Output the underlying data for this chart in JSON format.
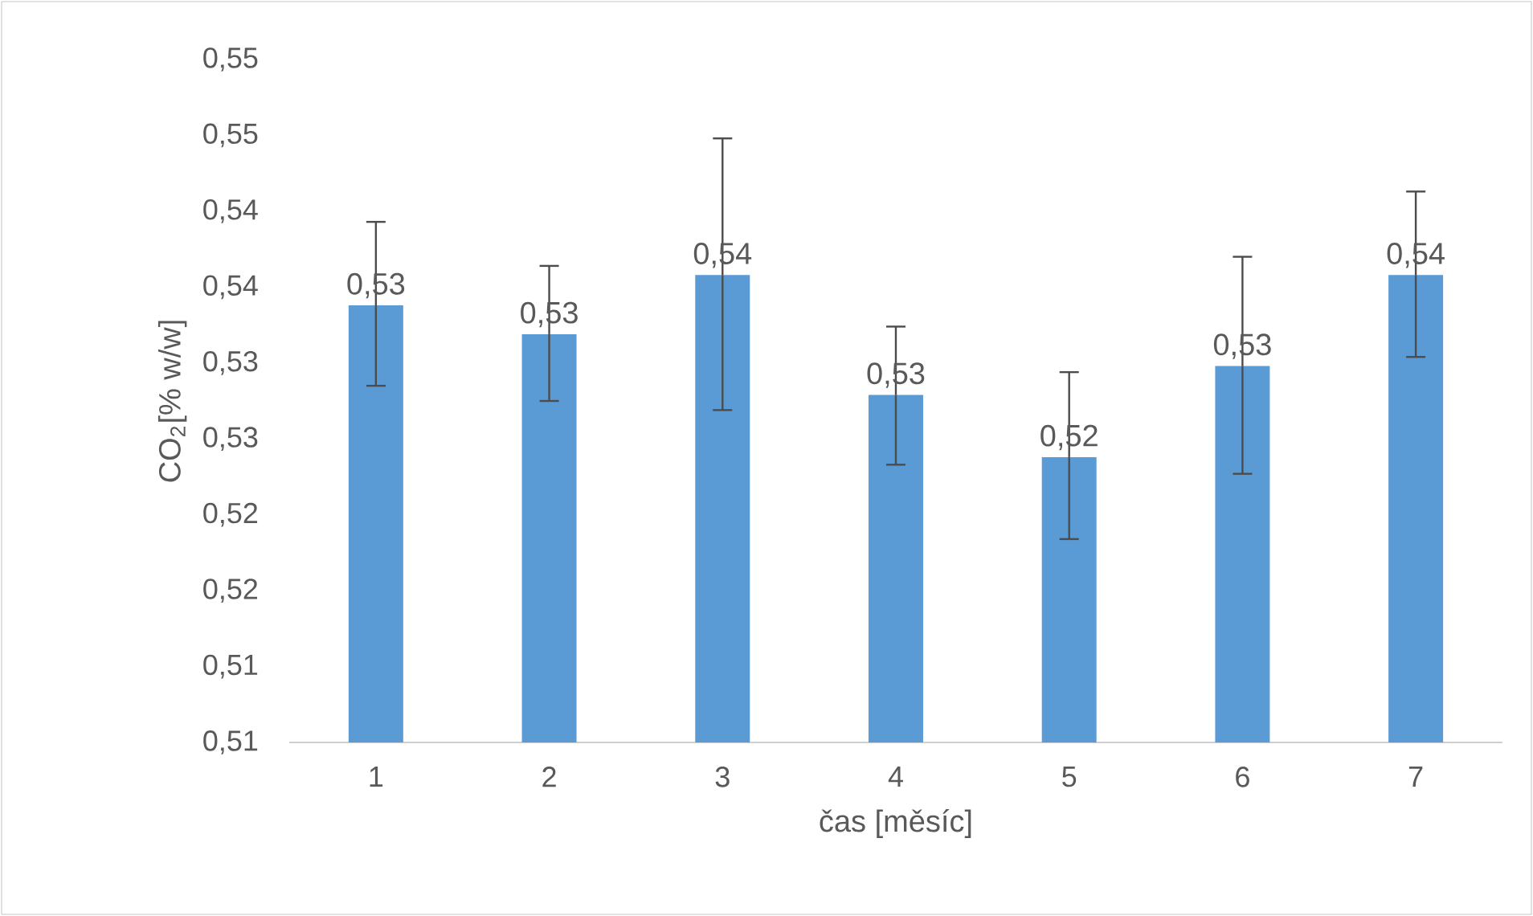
{
  "chart_data": {
    "type": "bar",
    "xlabel": "čas [měsíc]",
    "ylabel": "CO$_{2}$[% w/w]",
    "categories": [
      "1",
      "2",
      "3",
      "4",
      "5",
      "6",
      "7"
    ],
    "values": [
      0.5338,
      0.5319,
      0.5358,
      0.5279,
      0.5238,
      0.5298,
      0.5358
    ],
    "errors": [
      [
        0.5285,
        0.5393
      ],
      [
        0.5275,
        0.5364
      ],
      [
        0.5269,
        0.5448
      ],
      [
        0.5233,
        0.5324
      ],
      [
        0.5184,
        0.5294
      ],
      [
        0.5227,
        0.537
      ],
      [
        0.5304,
        0.5413
      ]
    ],
    "value_labels": [
      "0,53",
      "0,53",
      "0,54",
      "0,53",
      "0,52",
      "0,53",
      "0,54"
    ],
    "color": "#5b9bd5",
    "ylim": [
      0.505,
      0.55
    ],
    "yticks": [
      {
        "value": 0.505,
        "label": "0,51"
      },
      {
        "value": 0.51,
        "label": "0,51"
      },
      {
        "value": 0.515,
        "label": "0,52"
      },
      {
        "value": 0.52,
        "label": "0,52"
      },
      {
        "value": 0.525,
        "label": "0,53"
      },
      {
        "value": 0.53,
        "label": "0,53"
      },
      {
        "value": 0.535,
        "label": "0,54"
      },
      {
        "value": 0.54,
        "label": "0,54"
      },
      {
        "value": 0.545,
        "label": "0,55"
      },
      {
        "value": 0.55,
        "label": "0,55"
      }
    ],
    "grid": false
  }
}
